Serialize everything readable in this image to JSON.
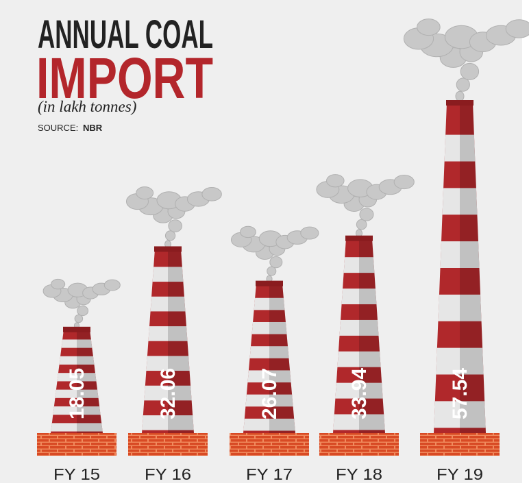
{
  "chart_data": {
    "type": "bar",
    "title": "ANNUAL COAL",
    "title2": "IMPORT",
    "subtitle": "(in lakh tonnes)",
    "source_label": "SOURCE:",
    "source": "NBR",
    "categories": [
      "FY 15",
      "FY 16",
      "FY 17",
      "FY 18",
      "FY 19"
    ],
    "values": [
      18.05,
      32.06,
      26.07,
      33.94,
      57.54
    ],
    "color": "#b0282b"
  }
}
